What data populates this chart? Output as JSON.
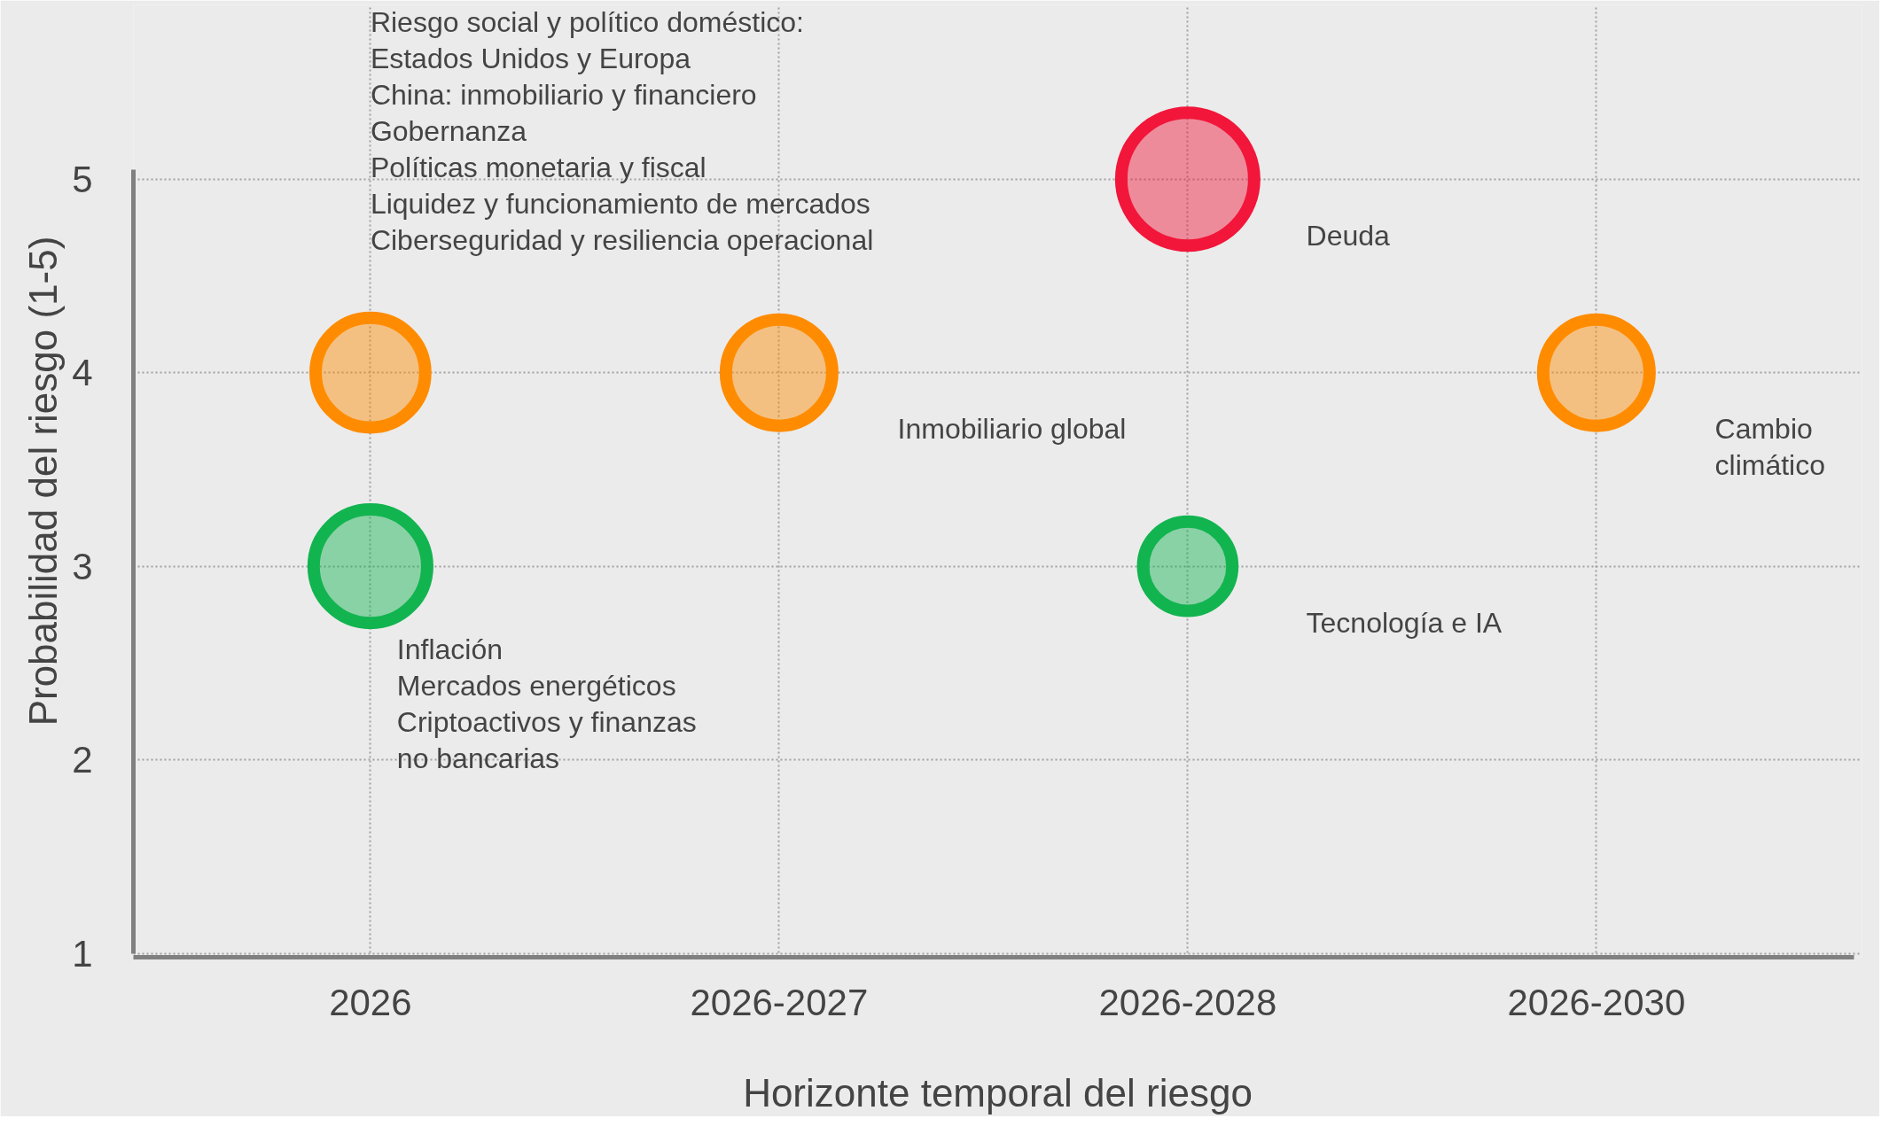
{
  "chart_data": {
    "type": "bubble",
    "xlabel": "Horizonte temporal del riesgo",
    "ylabel": "Probabilidad del riesgo (1-5)",
    "categories": [
      "2026",
      "2026-2027",
      "2026-2028",
      "2026-2030"
    ],
    "ylim": [
      1,
      5
    ],
    "yticks": [
      1,
      2,
      3,
      4,
      5
    ],
    "grid": true,
    "series": [
      {
        "name": "Riesgo social y político doméstico:\nEstados Unidos y Europa\nChina: inmobiliario y financiero\nGobernanza\nPolíticas monetaria y fiscal\nLiquidez y funcionamiento de mercados\nCiberseguridad y resiliencia operacional",
        "color": "#ff8c00",
        "values": [
          4,
          null,
          null,
          null
        ],
        "sizes": [
          0.68,
          null,
          null,
          null
        ]
      },
      {
        "name": "Inflación\nMercados energéticos\nCriptoactivos y finanzas no bancarias",
        "color": "#12b450",
        "values": [
          3,
          null,
          null,
          null
        ],
        "sizes": [
          0.73,
          null,
          null,
          null
        ]
      },
      {
        "name": "Inmobiliario global",
        "color": "#ff8c00",
        "values": [
          null,
          4,
          null,
          null
        ],
        "sizes": [
          null,
          0.64,
          null,
          null
        ]
      },
      {
        "name": "Deuda",
        "color": "#f2163a",
        "values": [
          null,
          null,
          5,
          null
        ],
        "sizes": [
          null,
          null,
          1,
          null
        ]
      },
      {
        "name": "Tecnología e IA",
        "color": "#12b450",
        "values": [
          null,
          null,
          3,
          null
        ],
        "sizes": [
          null,
          null,
          0.45,
          null
        ]
      },
      {
        "name": "Cambio climático",
        "color": "#ff8c00",
        "values": [
          null,
          null,
          null,
          4
        ],
        "sizes": [
          null,
          null,
          null,
          0.64
        ]
      }
    ]
  }
}
